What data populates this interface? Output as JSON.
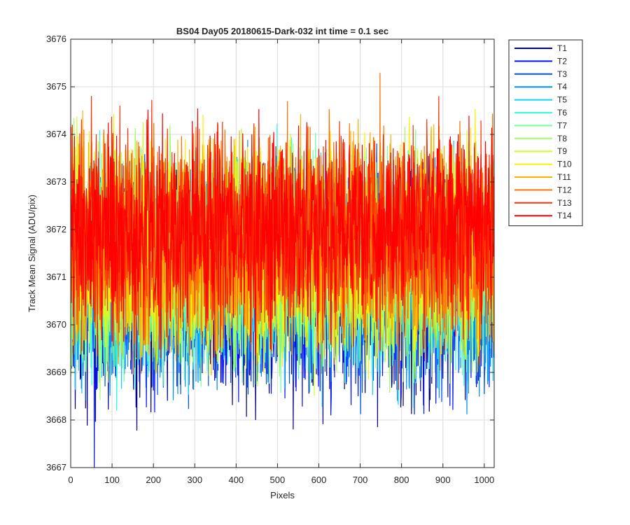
{
  "chart_data": {
    "type": "line",
    "title": "BS04 Day05 20180615-Dark-032 int time = 0.1 sec",
    "xlabel": "Pixels",
    "ylabel": "Track Mean Signal (ADU/pix)",
    "xlim": [
      0,
      1024
    ],
    "ylim": [
      3667,
      3676
    ],
    "x_ticks": [
      0,
      100,
      200,
      300,
      400,
      500,
      600,
      700,
      800,
      900,
      1000
    ],
    "y_ticks": [
      3667,
      3668,
      3669,
      3670,
      3671,
      3672,
      3673,
      3674,
      3675,
      3676
    ],
    "grid": true,
    "legend_position": "outside-top-right",
    "n_points": 1024,
    "series": [
      {
        "name": "T1",
        "color": "#00008f",
        "mean": 3670.6,
        "spread": 1.05
      },
      {
        "name": "T2",
        "color": "#0010ff",
        "mean": 3670.8,
        "spread": 1.05
      },
      {
        "name": "T3",
        "color": "#0050ff",
        "mean": 3670.9,
        "spread": 1.05
      },
      {
        "name": "T4",
        "color": "#0090ff",
        "mean": 3671.0,
        "spread": 1.05
      },
      {
        "name": "T5",
        "color": "#10d0ff",
        "mean": 3671.1,
        "spread": 1.05
      },
      {
        "name": "T6",
        "color": "#30ffe0",
        "mean": 3671.2,
        "spread": 1.05
      },
      {
        "name": "T7",
        "color": "#70ffa0",
        "mean": 3671.3,
        "spread": 1.05
      },
      {
        "name": "T8",
        "color": "#a0ff60",
        "mean": 3671.4,
        "spread": 1.05
      },
      {
        "name": "T9",
        "color": "#d0ff20",
        "mean": 3671.5,
        "spread": 1.05
      },
      {
        "name": "T10",
        "color": "#ffef00",
        "mean": 3671.6,
        "spread": 1.05
      },
      {
        "name": "T11",
        "color": "#ffb000",
        "mean": 3671.7,
        "spread": 1.05
      },
      {
        "name": "T12",
        "color": "#ff7000",
        "mean": 3671.8,
        "spread": 1.05
      },
      {
        "name": "T13",
        "color": "#ff3000",
        "mean": 3671.9,
        "spread": 1.05
      },
      {
        "name": "T14",
        "color": "#ff0000",
        "mean": 3672.0,
        "spread": 1.0
      }
    ]
  }
}
